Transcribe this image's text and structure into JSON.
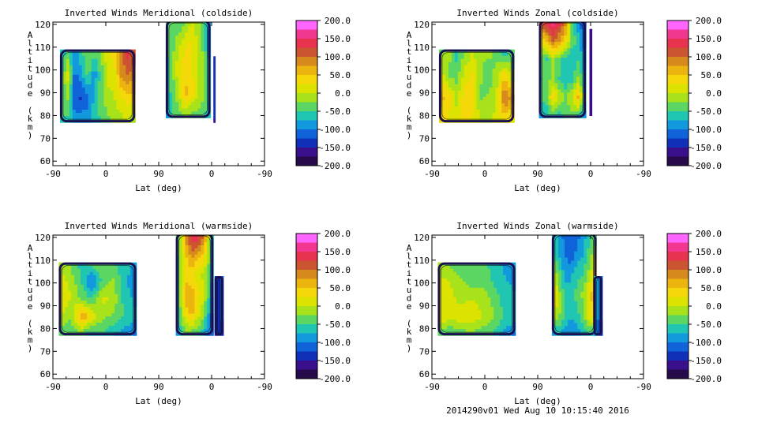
{
  "footer": {
    "stamp": "2014290v01 Wed Aug 10 10:15:40 2016"
  },
  "colorbar": {
    "labels": [
      "200.0",
      "150.0",
      "100.0",
      "50.0",
      "0.0",
      "-50.0",
      "-100.0",
      "-150.0",
      "-200.0"
    ],
    "colors": [
      "#ff66ff",
      "#f1378f",
      "#e8334f",
      "#cc5531",
      "#d68a1c",
      "#ebb40e",
      "#f5d80a",
      "#dde300",
      "#a8e21a",
      "#5cd662",
      "#20c6b2",
      "#1299dd",
      "#1063d8",
      "#1030b8",
      "#3a0f8c",
      "#260a4a"
    ]
  },
  "chart_data": [
    {
      "id": "meridional-coldside",
      "type": "heatmap",
      "title": "Inverted Winds Meridional (coldside)",
      "xlabel": "Lat (deg)",
      "ylabel": "Altitude (km)",
      "xticks": [
        "-90",
        "0",
        "90",
        "0",
        "-90"
      ],
      "yticks": [
        "60",
        "70",
        "80",
        "90",
        "100",
        "110",
        "120"
      ],
      "ylim": [
        58,
        121
      ],
      "clim": [
        -200,
        200
      ],
      "regions": [
        {
          "lat": [
            -78,
            50
          ],
          "alt": [
            77,
            109
          ],
          "v": [
            [
              -70,
              -40,
              -90,
              -60,
              -20,
              -40,
              -30,
              20,
              40,
              90,
              140,
              120
            ],
            [
              -50,
              10,
              -110,
              -80,
              -40,
              -90,
              -40,
              10,
              10,
              80,
              100,
              90
            ],
            [
              -40,
              -20,
              -120,
              -130,
              -110,
              -70,
              -30,
              -10,
              0,
              20,
              40,
              40
            ],
            [
              -50,
              -60,
              -90,
              -80,
              -90,
              -60,
              -50,
              -30,
              -20,
              -10,
              0,
              -20
            ]
          ]
        },
        {
          "lat": [
            102,
            178
          ],
          "alt": [
            79,
            122
          ],
          "v": [
            [
              -30,
              -40,
              -50,
              -30,
              0,
              -10,
              -40,
              -80
            ],
            [
              -40,
              -30,
              0,
              20,
              30,
              0,
              -30,
              -80
            ],
            [
              -60,
              -20,
              20,
              40,
              30,
              0,
              -20,
              -70
            ],
            [
              -60,
              -40,
              10,
              60,
              40,
              10,
              -20,
              -60
            ],
            [
              -80,
              -50,
              -40,
              -20,
              -40,
              -30,
              -40,
              -70
            ]
          ]
        },
        {
          "lat": [
            183,
            186
          ],
          "alt": [
            77,
            106
          ],
          "v": [
            [
              -130
            ],
            [
              -150
            ]
          ]
        }
      ]
    },
    {
      "id": "zonal-coldside",
      "type": "heatmap",
      "title": "Inverted Winds Zonal (coldside)",
      "xlabel": "Lat (deg)",
      "ylabel": "Altitude (km)",
      "xticks": [
        "-90",
        "0",
        "90",
        "0",
        "-90"
      ],
      "yticks": [
        "60",
        "70",
        "80",
        "90",
        "100",
        "110",
        "120"
      ],
      "ylim": [
        58,
        121
      ],
      "clim": [
        -200,
        200
      ],
      "regions": [
        {
          "lat": [
            -78,
            50
          ],
          "alt": [
            77,
            109
          ],
          "v": [
            [
              -40,
              -10,
              -60,
              -30,
              0,
              -20,
              -10,
              -40,
              -80,
              -40
            ],
            [
              20,
              -30,
              -40,
              10,
              30,
              -20,
              -50,
              -10,
              40,
              -20
            ],
            [
              60,
              40,
              -10,
              40,
              40,
              -30,
              -20,
              0,
              110,
              60
            ],
            [
              30,
              20,
              10,
              30,
              20,
              0,
              -10,
              10,
              30,
              20
            ]
          ]
        },
        {
          "lat": [
            92,
            172
          ],
          "alt": [
            79,
            122
          ],
          "v": [
            [
              120,
              150,
              170,
              140,
              90,
              -40,
              -90,
              -130
            ],
            [
              20,
              60,
              110,
              80,
              40,
              -30,
              -60,
              -110
            ],
            [
              -30,
              -50,
              -10,
              -40,
              -60,
              -70,
              -50,
              -80
            ],
            [
              -50,
              -40,
              -20,
              -50,
              -70,
              -60,
              -20,
              -70
            ],
            [
              -40,
              -30,
              40,
              0,
              -30,
              0,
              60,
              -40
            ],
            [
              -90,
              -70,
              -50,
              -60,
              -40,
              -30,
              -50,
              -90
            ]
          ]
        },
        {
          "lat": [
            178,
            182
          ],
          "alt": [
            80,
            118
          ],
          "v": [
            [
              -150
            ],
            [
              -150
            ]
          ]
        }
      ]
    },
    {
      "id": "meridional-warmside",
      "type": "heatmap",
      "title": "Inverted Winds Meridional (warmside)",
      "xlabel": "Lat (deg)",
      "ylabel": "Altitude (km)",
      "xticks": [
        "-90",
        "0",
        "90",
        "0",
        "-90"
      ],
      "yticks": [
        "60",
        "70",
        "80",
        "90",
        "100",
        "110",
        "120"
      ],
      "ylim": [
        58,
        121
      ],
      "clim": [
        -200,
        200
      ],
      "regions": [
        {
          "lat": [
            -80,
            52
          ],
          "alt": [
            77,
            109
          ],
          "v": [
            [
              -20,
              -30,
              -60,
              -40,
              -30,
              -50,
              -60,
              -80
            ],
            [
              20,
              -10,
              -50,
              -110,
              -40,
              -20,
              -70,
              -90
            ],
            [
              30,
              0,
              -30,
              -50,
              10,
              -10,
              -60,
              -80
            ],
            [
              0,
              -20,
              80,
              20,
              -20,
              -30,
              -50,
              -70
            ],
            [
              -40,
              -50,
              -40,
              -60,
              -50,
              -70,
              -90,
              -100
            ]
          ]
        },
        {
          "lat": [
            119,
            183
          ],
          "alt": [
            77,
            122
          ],
          "v": [
            [
              -40,
              0,
              110,
              150,
              150,
              120,
              40,
              -60
            ],
            [
              -50,
              10,
              60,
              90,
              70,
              50,
              20,
              -60
            ],
            [
              -60,
              0,
              30,
              30,
              10,
              0,
              -20,
              -70
            ],
            [
              -60,
              20,
              80,
              60,
              40,
              10,
              -20,
              -80
            ],
            [
              -70,
              -10,
              40,
              60,
              20,
              0,
              -60,
              -100
            ],
            [
              -80,
              -50,
              -30,
              -40,
              -50,
              -60,
              -90,
              -120
            ]
          ]
        },
        {
          "lat": [
            185,
            200
          ],
          "alt": [
            77,
            103
          ],
          "v": [
            [
              -140,
              -110
            ],
            [
              -150,
              -130
            ]
          ]
        }
      ]
    },
    {
      "id": "zonal-warmside",
      "type": "heatmap",
      "title": "Inverted Winds Zonal (warmside)",
      "xlabel": "Lat (deg)",
      "ylabel": "Altitude (km)",
      "xticks": [
        "-90",
        "0",
        "90",
        "0",
        "-90"
      ],
      "yticks": [
        "60",
        "70",
        "80",
        "90",
        "100",
        "110",
        "120"
      ],
      "ylim": [
        58,
        121
      ],
      "clim": [
        -200,
        200
      ],
      "regions": [
        {
          "lat": [
            -80,
            52
          ],
          "alt": [
            77,
            109
          ],
          "v": [
            [
              -20,
              -30,
              -40,
              -30,
              -40,
              -60,
              -80,
              -90
            ],
            [
              10,
              0,
              -20,
              -40,
              -30,
              -50,
              -70,
              -80
            ],
            [
              20,
              10,
              -10,
              0,
              -10,
              -30,
              -60,
              -70
            ],
            [
              30,
              10,
              20,
              20,
              0,
              -20,
              -50,
              -60
            ],
            [
              -40,
              -50,
              -40,
              -30,
              -40,
              -50,
              -80,
              -100
            ]
          ]
        },
        {
          "lat": [
            114,
            190
          ],
          "alt": [
            77,
            122
          ],
          "v": [
            [
              -60,
              -90,
              -110,
              -120,
              -110,
              -90,
              -60,
              -40
            ],
            [
              -50,
              -80,
              -100,
              -120,
              -90,
              -80,
              -40,
              -10
            ],
            [
              0,
              -40,
              -90,
              -80,
              -60,
              -50,
              -20,
              40
            ],
            [
              50,
              -20,
              -60,
              -60,
              -40,
              -20,
              30,
              90
            ],
            [
              10,
              -20,
              -50,
              -70,
              -60,
              -30,
              20,
              60
            ],
            [
              -80,
              -70,
              -90,
              -100,
              -90,
              -70,
              -50,
              -80
            ]
          ]
        },
        {
          "lat": [
            185,
            200
          ],
          "alt": [
            77,
            103
          ],
          "v": [
            [
              -60,
              -110
            ],
            [
              -80,
              -130
            ]
          ]
        }
      ]
    }
  ]
}
